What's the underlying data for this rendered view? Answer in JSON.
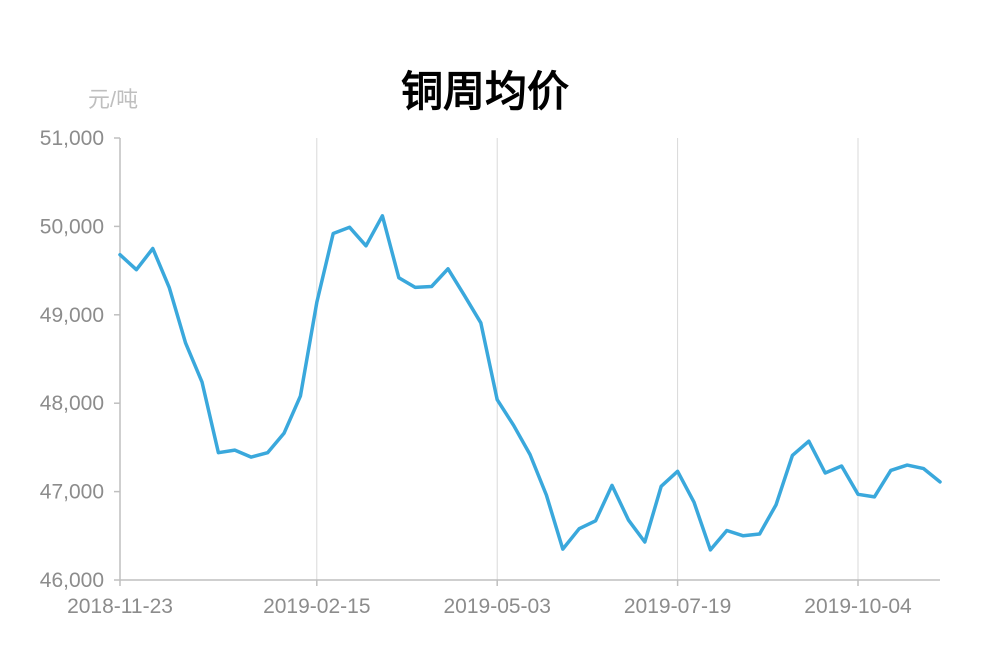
{
  "chart_data": {
    "type": "line",
    "title": "铜周均价",
    "y_unit": "元/吨",
    "xlabel": "",
    "ylabel": "",
    "ylim": [
      46000,
      51000
    ],
    "y_ticks": [
      {
        "value": 46000,
        "label": "46,000"
      },
      {
        "value": 47000,
        "label": "47,000"
      },
      {
        "value": 48000,
        "label": "48,000"
      },
      {
        "value": 49000,
        "label": "49,000"
      },
      {
        "value": 50000,
        "label": "50,000"
      },
      {
        "value": 51000,
        "label": "51,000"
      }
    ],
    "x_ticks": [
      "2018-11-23",
      "2019-02-15",
      "2019-05-03",
      "2019-07-19",
      "2019-10-04"
    ],
    "x_tick_indices": [
      0,
      12,
      23,
      34,
      45
    ],
    "grid": {
      "vertical": true,
      "horizontal": false
    },
    "line_color": "#3aa8dc",
    "series": [
      {
        "values": [
          49680,
          49510,
          49750,
          49310,
          48680,
          48240,
          47440,
          47470,
          47390,
          47440,
          47660,
          48080,
          49140,
          49920,
          49990,
          49780,
          50120,
          49420,
          49310,
          49320,
          49520,
          49220,
          48910,
          48040,
          47750,
          47420,
          46960,
          46350,
          46580,
          46670,
          47070,
          46680,
          46430,
          47060,
          47230,
          46880,
          46340,
          46560,
          46500,
          46520,
          46850,
          47410,
          47570,
          47210,
          47290,
          46970,
          46940,
          47240,
          47300,
          47260,
          47110
        ]
      }
    ]
  }
}
